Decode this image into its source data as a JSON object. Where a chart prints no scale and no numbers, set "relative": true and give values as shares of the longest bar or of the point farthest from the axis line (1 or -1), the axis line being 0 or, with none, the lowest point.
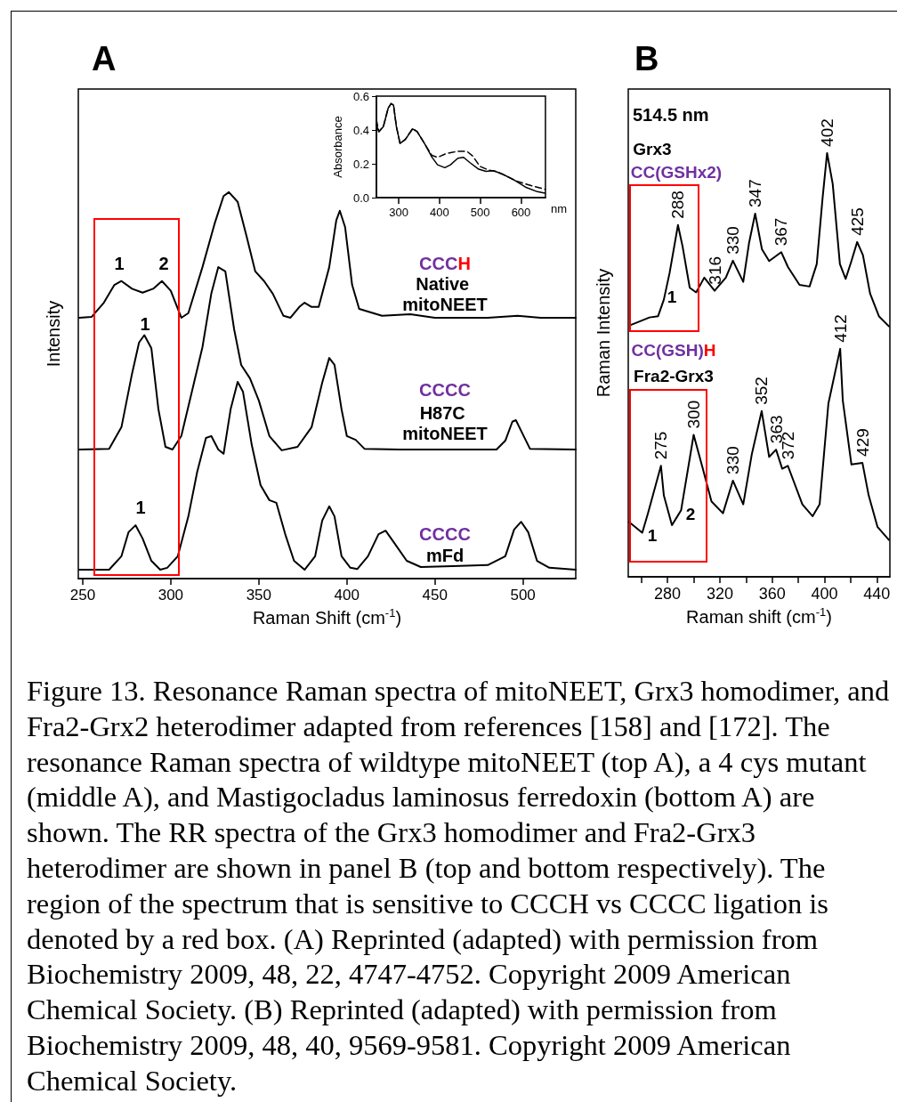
{
  "chart_data": [
    {
      "type": "line",
      "title": "A",
      "xlabel": "Raman Shift (cm$^{-1}$)",
      "ylabel": "Intensity",
      "relative": true,
      "xlim": [
        247.5,
        530
      ],
      "xticks": [
        250,
        300,
        350,
        400,
        450,
        500
      ],
      "grid": false,
      "marker": "none",
      "line_style": "solid",
      "series": [
        {
          "color": "#000000",
          "x": [
            248,
            255,
            262,
            268,
            272,
            278,
            284,
            290,
            295,
            300,
            306,
            310,
            318,
            325,
            330,
            333,
            338,
            343,
            348,
            353,
            358,
            364,
            368,
            373,
            376,
            380,
            384,
            390,
            394,
            396,
            399,
            403,
            407,
            412,
            420,
            436,
            450,
            480,
            497,
            510,
            530
          ],
          "values": [
            0.675,
            0.677,
            0.714,
            0.76,
            0.77,
            0.75,
            0.74,
            0.75,
            0.77,
            0.745,
            0.675,
            0.687,
            0.806,
            0.92,
            0.99,
            1.0,
            0.975,
            0.887,
            0.795,
            0.77,
            0.737,
            0.68,
            0.675,
            0.703,
            0.714,
            0.703,
            0.703,
            0.806,
            0.927,
            0.952,
            0.91,
            0.76,
            0.698,
            0.691,
            0.68,
            0.684,
            0.675,
            0.675,
            0.68,
            0.675,
            0.675
          ]
        },
        {
          "color": "#000000",
          "x": [
            248,
            265,
            272,
            278,
            282,
            285,
            289,
            293,
            297,
            301,
            306,
            312,
            318,
            323,
            327,
            331,
            336,
            340,
            345,
            350,
            356,
            363,
            372,
            380,
            386,
            390,
            393,
            397,
            400,
            405,
            410,
            430,
            460,
            485,
            490,
            494,
            496,
            500,
            504,
            530
          ],
          "values": [
            0.334,
            0.336,
            0.392,
            0.53,
            0.611,
            0.63,
            0.596,
            0.438,
            0.341,
            0.334,
            0.369,
            0.484,
            0.599,
            0.737,
            0.806,
            0.795,
            0.645,
            0.553,
            0.518,
            0.461,
            0.369,
            0.332,
            0.341,
            0.392,
            0.507,
            0.571,
            0.553,
            0.438,
            0.369,
            0.359,
            0.336,
            0.334,
            0.334,
            0.334,
            0.357,
            0.406,
            0.41,
            0.373,
            0.336,
            0.334
          ]
        },
        {
          "color": "#000000",
          "x": [
            248,
            265,
            272,
            276,
            280,
            284,
            289,
            294,
            298,
            304,
            310,
            315,
            320,
            323,
            327,
            330,
            334,
            338,
            341,
            346,
            351,
            356,
            360,
            365,
            370,
            376,
            382,
            386,
            390,
            393,
            397,
            402,
            406,
            412,
            418,
            422,
            427,
            434,
            442,
            460,
            480,
            490,
            495,
            499,
            503,
            508,
            515,
            530
          ],
          "values": [
            0.023,
            0.023,
            0.058,
            0.12,
            0.138,
            0.104,
            0.046,
            0.023,
            0.028,
            0.058,
            0.161,
            0.276,
            0.364,
            0.369,
            0.334,
            0.323,
            0.438,
            0.509,
            0.484,
            0.346,
            0.242,
            0.203,
            0.196,
            0.115,
            0.046,
            0.023,
            0.058,
            0.15,
            0.187,
            0.161,
            0.058,
            0.028,
            0.025,
            0.058,
            0.115,
            0.124,
            0.092,
            0.046,
            0.03,
            0.032,
            0.035,
            0.058,
            0.127,
            0.147,
            0.12,
            0.046,
            0.028,
            0.023
          ]
        }
      ],
      "annotations": [
        "1",
        "2",
        "CCCH",
        "Native mitoNEET",
        "1",
        "CCCC",
        "H87C mitoNEET",
        "1",
        "CCCC",
        "mFd",
        "Figure 13. Resonance Raman spectra of mitoNEET, Grx3 homodimer, and Fra2-Grx2 heterodimer adapted from references [158] and [172]. The resonance Raman spectra of wildtype mitoNEET (top A), a 4 cys mutant (middle A), and Mastigocladus laminosus ferredoxin (bottom A) are shown. The RR spectra of the Grx3 homodimer and Fra2-Grx3 heterodimer are shown in panel B (top and bottom respectively). The region of the spectrum that is sensitive to CCCH vs CCCC ligation is denoted by a red box. (A) Reprinted (adapted) with permission from Biochemistry 2009, 48, 22, 4747-4752. Copyright 2009 American Chemical Society. (B) Reprinted (adapted) with permission from Biochemistry 2009, 48, 40, 9569-9581. Copyright 2009 American Chemical Society."
      ]
    },
    {
      "type": "line",
      "xlabel": "nm",
      "ylabel": "Absorbance",
      "xlim": [
        245,
        660
      ],
      "xticks": [
        300,
        400,
        500,
        600
      ],
      "ylim": [
        0,
        0.6
      ],
      "yticks": [
        {
          "value": 0,
          "label": "0.0"
        },
        {
          "value": 0.2,
          "label": "0.2"
        },
        {
          "value": 0.4,
          "label": "0.4"
        },
        {
          "value": 0.6,
          "label": "0.6"
        }
      ],
      "grid": false,
      "marker": "none",
      "series": [
        {
          "color": "#000000",
          "line_style": "solid",
          "x": [
            245,
            251,
            262,
            274,
            281,
            287,
            294,
            303,
            316,
            334,
            345,
            363,
            381,
            395,
            413,
            427,
            445,
            459,
            474,
            496,
            514,
            532,
            553,
            582,
            611,
            640,
            659
          ],
          "values": [
            0.43,
            0.39,
            0.42,
            0.53,
            0.556,
            0.547,
            0.42,
            0.32,
            0.344,
            0.406,
            0.39,
            0.32,
            0.24,
            0.194,
            0.177,
            0.194,
            0.233,
            0.238,
            0.208,
            0.168,
            0.155,
            0.159,
            0.141,
            0.106,
            0.062,
            0.035,
            0.026
          ]
        },
        {
          "color": "#000000",
          "line_style": "dashed",
          "x": [
            245,
            251,
            262,
            274,
            281,
            287,
            294,
            303,
            316,
            334,
            345,
            363,
            381,
            395,
            417,
            445,
            467,
            481,
            499,
            521,
            539,
            560,
            589,
            625,
            659
          ],
          "values": [
            0.46,
            0.39,
            0.42,
            0.53,
            0.556,
            0.547,
            0.42,
            0.32,
            0.344,
            0.41,
            0.39,
            0.32,
            0.25,
            0.238,
            0.261,
            0.274,
            0.274,
            0.247,
            0.185,
            0.162,
            0.155,
            0.132,
            0.097,
            0.071,
            0.049
          ]
        }
      ]
    },
    {
      "type": "line",
      "title": "B",
      "subtitle": "514.5 nm",
      "xlabel": "Raman shift (cm$^{-1}$)",
      "ylabel": "Raman Intensity",
      "relative": true,
      "xlim": [
        250,
        450
      ],
      "xticks": [
        {
          "value": 260,
          "label": null
        },
        280,
        {
          "value": 300,
          "label": null
        },
        320,
        {
          "value": 340,
          "label": null
        },
        360,
        {
          "value": 380,
          "label": null
        },
        400,
        {
          "value": 420,
          "label": null
        },
        440
      ],
      "grid": false,
      "marker": "none",
      "line_style": "solid",
      "series": [
        {
          "color": "#000000",
          "x": [
            251.8,
            257.4,
            266.2,
            272.8,
            277.2,
            281.6,
            288,
            291.5,
            297,
            301.9,
            308.1,
            316,
            324.6,
            330,
            337.9,
            342.3,
            347,
            352.2,
            357.7,
            367,
            372.1,
            380.9,
            388.6,
            394.1,
            398.5,
            402,
            406.3,
            411.8,
            416.2,
            420.6,
            425,
            429.4,
            434.9,
            441.6,
            449.3
          ],
          "values": [
            0.594,
            0.601,
            0.612,
            0.615,
            0.654,
            0.717,
            0.83,
            0.78,
            0.682,
            0.671,
            0.706,
            0.675,
            0.706,
            0.746,
            0.696,
            0.787,
            0.857,
            0.773,
            0.745,
            0.766,
            0.731,
            0.689,
            0.685,
            0.738,
            0.892,
            1.0,
            0.927,
            0.738,
            0.703,
            0.745,
            0.79,
            0.759,
            0.668,
            0.615,
            0.591
          ]
        },
        {
          "color": "#000000",
          "x": [
            250.7,
            260.7,
            265.1,
            275,
            277.2,
            283.4,
            290.4,
            300,
            307,
            313.6,
            322.4,
            330,
            337.9,
            344.5,
            352,
            357.7,
            363,
            367.7,
            372,
            383.1,
            390.9,
            396.3,
            403,
            412,
            414,
            420.6,
            429,
            433.8,
            440.5,
            449.3
          ],
          "values": [
            0.129,
            0.104,
            0.15,
            0.262,
            0.192,
            0.122,
            0.157,
            0.335,
            0.255,
            0.178,
            0.15,
            0.227,
            0.171,
            0.29,
            0.391,
            0.283,
            0.3,
            0.255,
            0.262,
            0.171,
            0.143,
            0.171,
            0.409,
            0.538,
            0.416,
            0.265,
            0.269,
            0.192,
            0.118,
            0.087
          ]
        }
      ],
      "annotations": [
        {
          "text": "288",
          "x": 288,
          "y": 0.83
        },
        {
          "text": "316",
          "x": 316,
          "y": 0.675
        },
        {
          "text": "330",
          "x": 330,
          "y": 0.746
        },
        {
          "text": "347",
          "x": 347,
          "y": 0.857
        },
        {
          "text": "367",
          "x": 367,
          "y": 0.766
        },
        {
          "text": "402",
          "x": 402,
          "y": 1.0
        },
        {
          "text": "425",
          "x": 425,
          "y": 0.79
        },
        {
          "text": "275",
          "x": 275,
          "y": 0.262
        },
        {
          "text": "300",
          "x": 300,
          "y": 0.335
        },
        {
          "text": "330",
          "x": 330,
          "y": 0.227
        },
        {
          "text": "352",
          "x": 352,
          "y": 0.391
        },
        {
          "text": "363",
          "x": 363,
          "y": 0.3
        },
        {
          "text": "372",
          "x": 372,
          "y": 0.262
        },
        {
          "text": "412",
          "x": 412,
          "y": 0.538
        },
        {
          "text": "429",
          "x": 429,
          "y": 0.269
        },
        "Grx3",
        "CC(GSHx2)",
        "1",
        "CC(GSH)H",
        "Fra2-Grx3",
        "1",
        "2"
      ]
    }
  ]
}
